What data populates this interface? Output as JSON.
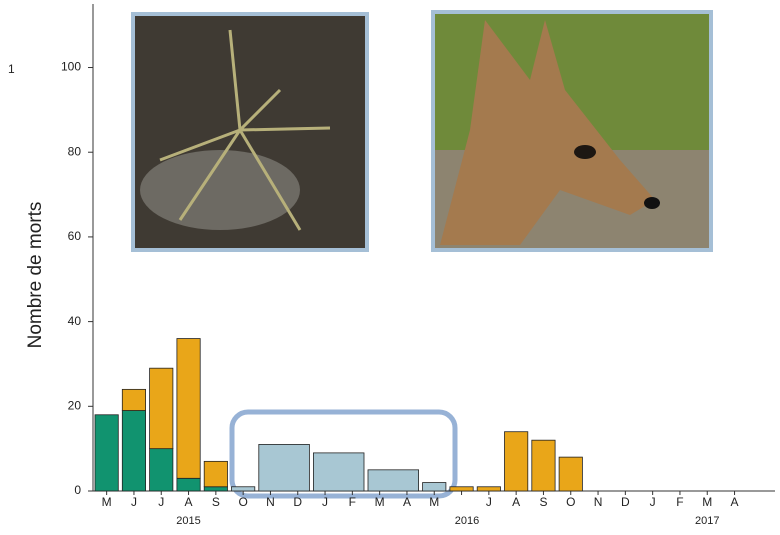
{
  "chart_data": {
    "type": "bar",
    "y_label": "Nombre de morts",
    "annotation": "1",
    "categories": [
      "M",
      "J",
      "J",
      "A",
      "S",
      "O",
      "N",
      "D",
      "J",
      "F",
      "M",
      "A",
      "M",
      null,
      "J",
      "A",
      "S",
      "O",
      "N",
      "D",
      "J",
      "F",
      "M",
      "A"
    ],
    "year_labels": [
      "2015",
      "2016",
      "2017"
    ],
    "series": [
      {
        "color": "#11936f",
        "values": [
          18,
          19,
          10,
          3,
          1,
          null,
          null,
          null,
          null,
          null,
          null,
          null,
          null,
          null,
          null,
          null,
          null,
          null,
          null,
          null,
          null,
          null,
          null,
          null
        ]
      },
      {
        "color": "#e9a619",
        "values": [
          null,
          5,
          19,
          33,
          6,
          null,
          null,
          null,
          null,
          null,
          null,
          null,
          null,
          1,
          1,
          14,
          12,
          8,
          null,
          null,
          null,
          null,
          null,
          null
        ]
      },
      {
        "color": "#a8c7d3",
        "values": [
          null,
          null,
          null,
          null,
          null,
          1,
          11,
          null,
          9,
          null,
          5,
          null,
          2,
          null,
          null,
          null,
          null,
          null,
          null,
          null,
          null,
          null,
          null,
          null
        ]
      }
    ],
    "ylim": [
      0,
      115
    ],
    "yticks": [
      0,
      20,
      40,
      60,
      80,
      100
    ]
  }
}
